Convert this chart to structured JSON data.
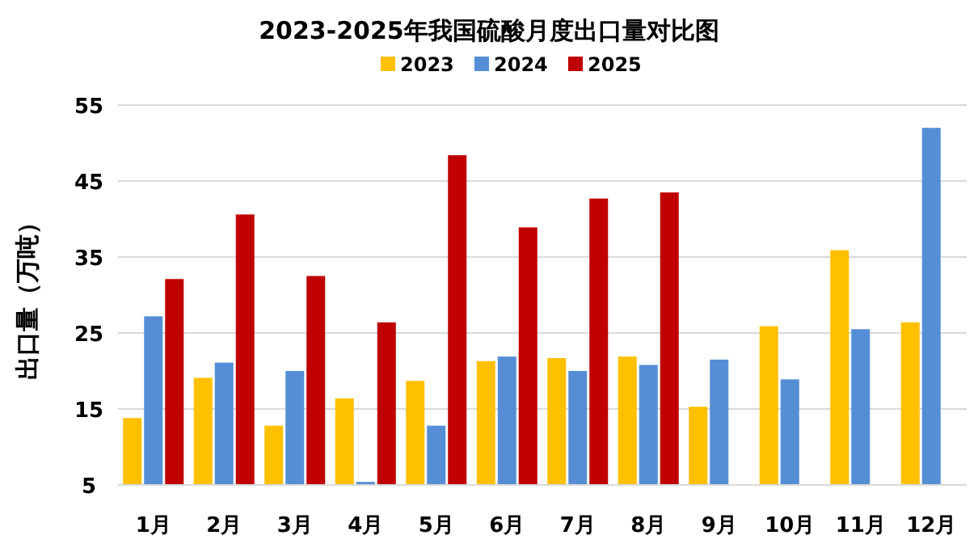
{
  "chart_data": {
    "type": "bar",
    "title": "2023-2025年我国硫酸月度出口量对比图",
    "ylabel": "出口量（万吨）",
    "categories": [
      "1月",
      "2月",
      "3月",
      "4月",
      "5月",
      "6月",
      "7月",
      "8月",
      "9月",
      "10月",
      "11月",
      "12月"
    ],
    "series": [
      {
        "name": "2023",
        "color": "#ffc000",
        "values": [
          13.8,
          19.1,
          12.8,
          16.4,
          18.7,
          21.3,
          21.7,
          21.9,
          15.3,
          25.9,
          35.9,
          26.4
        ]
      },
      {
        "name": "2024",
        "color": "#558ed5",
        "values": [
          27.2,
          21.1,
          20.0,
          5.4,
          12.8,
          21.9,
          20.0,
          20.8,
          21.5,
          18.9,
          25.5,
          52.0
        ]
      },
      {
        "name": "2025",
        "color": "#c00000",
        "values": [
          32.1,
          40.6,
          32.5,
          26.4,
          48.4,
          38.9,
          42.7,
          43.5,
          null,
          null,
          null,
          null
        ]
      }
    ],
    "ylim": [
      5,
      55
    ],
    "yticks": [
      5,
      15,
      25,
      35,
      45,
      55
    ],
    "grid": "y",
    "legend": "top"
  }
}
